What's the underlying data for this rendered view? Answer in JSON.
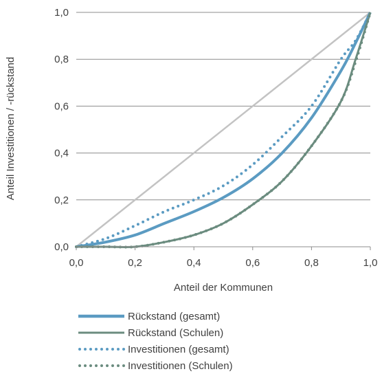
{
  "chart_data": {
    "type": "line",
    "title": "",
    "xlabel": "Anteil der Kommunen",
    "ylabel": "Anteil Investitionen / -rückstand",
    "xlim": [
      0,
      1
    ],
    "ylim": [
      0,
      1
    ],
    "x_ticks": [
      "0,0",
      "0,2",
      "0,4",
      "0,6",
      "0,8",
      "1,0"
    ],
    "y_ticks": [
      "0,0",
      "0,2",
      "0,4",
      "0,6",
      "0,8",
      "1,0"
    ],
    "grid": "horizontal",
    "legend_position": "bottom",
    "reference_line": {
      "x": [
        0,
        1
      ],
      "y": [
        0,
        1
      ],
      "color": "#c3c3c3"
    },
    "x": [
      0,
      0.1,
      0.2,
      0.3,
      0.4,
      0.5,
      0.6,
      0.7,
      0.8,
      0.9,
      0.95,
      1.0
    ],
    "series": [
      {
        "name": "Rückstand (gesamt)",
        "style": "solid",
        "color": "#5b9bc2",
        "values": [
          0,
          0.02,
          0.05,
          0.1,
          0.15,
          0.21,
          0.29,
          0.4,
          0.55,
          0.75,
          0.87,
          1.0
        ]
      },
      {
        "name": "Rückstand (Schulen)",
        "style": "solid",
        "color": "#6b8c7f",
        "values": [
          0,
          0.0,
          0.0,
          0.02,
          0.05,
          0.1,
          0.18,
          0.28,
          0.43,
          0.62,
          0.8,
          1.0
        ]
      },
      {
        "name": "Investitionen (gesamt)",
        "style": "dotted",
        "color": "#5b9bc2",
        "values": [
          0,
          0.035,
          0.09,
          0.15,
          0.2,
          0.26,
          0.35,
          0.47,
          0.6,
          0.8,
          0.88,
          1.0
        ]
      },
      {
        "name": "Investitionen (Schulen)",
        "style": "dotted",
        "color": "#6b8c7f",
        "values": [
          0,
          0.0,
          0.0,
          0.02,
          0.05,
          0.1,
          0.18,
          0.28,
          0.43,
          0.62,
          0.79,
          1.0
        ]
      }
    ]
  }
}
